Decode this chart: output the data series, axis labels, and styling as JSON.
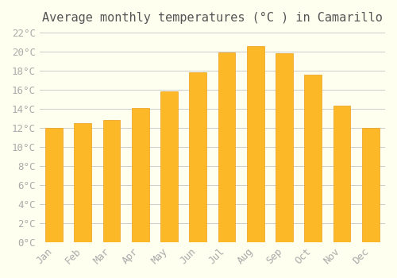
{
  "title": "Average monthly temperatures (°C ) in Camarillo",
  "months": [
    "Jan",
    "Feb",
    "Mar",
    "Apr",
    "May",
    "Jun",
    "Jul",
    "Aug",
    "Sep",
    "Oct",
    "Nov",
    "Dec"
  ],
  "values": [
    12.0,
    12.5,
    12.8,
    14.1,
    15.8,
    17.8,
    19.9,
    20.6,
    19.8,
    17.6,
    14.3,
    12.0
  ],
  "bar_color": "#FDB827",
  "bar_edge_color": "#E8A020",
  "background_color": "#FFFFF0",
  "grid_color": "#CCCCCC",
  "ylim": [
    0,
    22
  ],
  "ytick_step": 2,
  "title_fontsize": 11,
  "tick_fontsize": 9,
  "tick_font_color": "#AAAAAA",
  "font_family": "monospace"
}
